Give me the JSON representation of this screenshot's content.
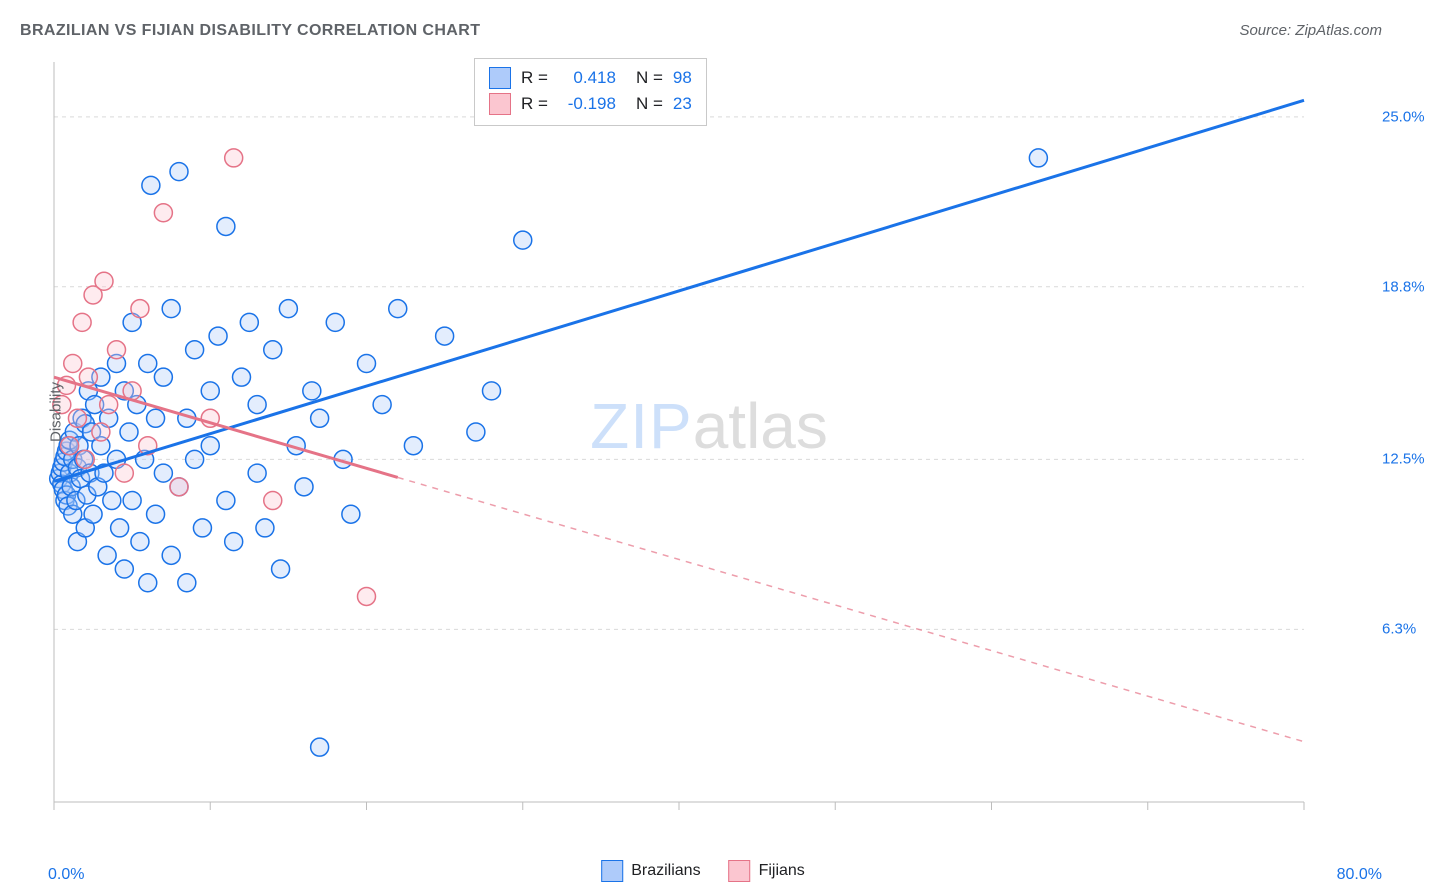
{
  "title": "BRAZILIAN VS FIJIAN DISABILITY CORRELATION CHART",
  "source_label": "Source: ZipAtlas.com",
  "watermark": {
    "left": "ZIP",
    "right": "atlas"
  },
  "ylabel": "Disability",
  "legend": {
    "series": [
      {
        "label": "Brazilians",
        "fill": "#aecbfa",
        "stroke": "#1a73e8"
      },
      {
        "label": "Fijians",
        "fill": "#fbc6d0",
        "stroke": "#e57387"
      }
    ]
  },
  "stats": [
    {
      "fill": "#aecbfa",
      "stroke": "#1a73e8",
      "r_label": "R =",
      "r": "0.418",
      "n_label": "N =",
      "n": "98"
    },
    {
      "fill": "#fbc6d0",
      "stroke": "#e57387",
      "r_label": "R =",
      "r": "-0.198",
      "n_label": "N =",
      "n": "23"
    }
  ],
  "chart": {
    "type": "scatter",
    "background_color": "#ffffff",
    "grid_color": "#d9d9d9",
    "axis_color": "#bdbdbd",
    "xlim": [
      0,
      80
    ],
    "ylim": [
      0,
      27
    ],
    "x_ticks": [
      0,
      10,
      20,
      30,
      40,
      50,
      60,
      70,
      80
    ],
    "y_gridlines": [
      6.3,
      12.5,
      18.8,
      25.0
    ],
    "y_tick_labels": [
      "6.3%",
      "12.5%",
      "18.8%",
      "25.0%"
    ],
    "xlim_labels": [
      "0.0%",
      "80.0%"
    ],
    "marker_radius": 9,
    "marker_stroke_width": 1.5,
    "marker_fill_opacity": 0.35,
    "line_width": 3,
    "series": [
      {
        "name": "Brazilians",
        "color_fill": "#aecbfa",
        "color_stroke": "#1a73e8",
        "trend": {
          "x1": 0,
          "y1": 11.7,
          "x2": 80,
          "y2": 25.6,
          "solid_until_x": 80
        },
        "points": [
          [
            0.3,
            11.8
          ],
          [
            0.4,
            12.0
          ],
          [
            0.5,
            11.6
          ],
          [
            0.5,
            12.2
          ],
          [
            0.6,
            12.4
          ],
          [
            0.6,
            11.4
          ],
          [
            0.7,
            11.0
          ],
          [
            0.7,
            12.6
          ],
          [
            0.8,
            12.8
          ],
          [
            0.8,
            11.2
          ],
          [
            0.9,
            13.0
          ],
          [
            0.9,
            10.8
          ],
          [
            1.0,
            12.0
          ],
          [
            1.0,
            13.2
          ],
          [
            1.1,
            11.5
          ],
          [
            1.2,
            12.5
          ],
          [
            1.2,
            10.5
          ],
          [
            1.3,
            13.5
          ],
          [
            1.4,
            11.0
          ],
          [
            1.5,
            12.2
          ],
          [
            1.5,
            9.5
          ],
          [
            1.6,
            13.0
          ],
          [
            1.7,
            11.8
          ],
          [
            1.8,
            14.0
          ],
          [
            1.9,
            12.5
          ],
          [
            2.0,
            10.0
          ],
          [
            2.0,
            13.8
          ],
          [
            2.1,
            11.2
          ],
          [
            2.2,
            15.0
          ],
          [
            2.3,
            12.0
          ],
          [
            2.4,
            13.5
          ],
          [
            2.5,
            10.5
          ],
          [
            2.6,
            14.5
          ],
          [
            2.8,
            11.5
          ],
          [
            3.0,
            13.0
          ],
          [
            3.0,
            15.5
          ],
          [
            3.2,
            12.0
          ],
          [
            3.4,
            9.0
          ],
          [
            3.5,
            14.0
          ],
          [
            3.7,
            11.0
          ],
          [
            4.0,
            16.0
          ],
          [
            4.0,
            12.5
          ],
          [
            4.2,
            10.0
          ],
          [
            4.5,
            15.0
          ],
          [
            4.5,
            8.5
          ],
          [
            4.8,
            13.5
          ],
          [
            5.0,
            17.5
          ],
          [
            5.0,
            11.0
          ],
          [
            5.3,
            14.5
          ],
          [
            5.5,
            9.5
          ],
          [
            5.8,
            12.5
          ],
          [
            6.0,
            16.0
          ],
          [
            6.0,
            8.0
          ],
          [
            6.2,
            22.5
          ],
          [
            6.5,
            14.0
          ],
          [
            6.5,
            10.5
          ],
          [
            7.0,
            15.5
          ],
          [
            7.0,
            12.0
          ],
          [
            7.5,
            18.0
          ],
          [
            7.5,
            9.0
          ],
          [
            8.0,
            23.0
          ],
          [
            8.0,
            11.5
          ],
          [
            8.5,
            14.0
          ],
          [
            8.5,
            8.0
          ],
          [
            9.0,
            16.5
          ],
          [
            9.0,
            12.5
          ],
          [
            9.5,
            10.0
          ],
          [
            10.0,
            15.0
          ],
          [
            10.0,
            13.0
          ],
          [
            10.5,
            17.0
          ],
          [
            11.0,
            11.0
          ],
          [
            11.0,
            21.0
          ],
          [
            11.5,
            9.5
          ],
          [
            12.0,
            15.5
          ],
          [
            12.5,
            17.5
          ],
          [
            13.0,
            12.0
          ],
          [
            13.0,
            14.5
          ],
          [
            13.5,
            10.0
          ],
          [
            14.0,
            16.5
          ],
          [
            14.5,
            8.5
          ],
          [
            15.0,
            18.0
          ],
          [
            15.5,
            13.0
          ],
          [
            16.0,
            11.5
          ],
          [
            16.5,
            15.0
          ],
          [
            17.0,
            14.0
          ],
          [
            17.0,
            2.0
          ],
          [
            18.0,
            17.5
          ],
          [
            18.5,
            12.5
          ],
          [
            19.0,
            10.5
          ],
          [
            20.0,
            16.0
          ],
          [
            21.0,
            14.5
          ],
          [
            22.0,
            18.0
          ],
          [
            23.0,
            13.0
          ],
          [
            25.0,
            17.0
          ],
          [
            27.0,
            13.5
          ],
          [
            28.0,
            15.0
          ],
          [
            30.0,
            20.5
          ],
          [
            63.0,
            23.5
          ]
        ]
      },
      {
        "name": "Fijians",
        "color_fill": "#fbc6d0",
        "color_stroke": "#e57387",
        "trend": {
          "x1": 0,
          "y1": 15.5,
          "x2": 80,
          "y2": 2.2,
          "solid_until_x": 22
        },
        "points": [
          [
            0.5,
            14.5
          ],
          [
            0.8,
            15.2
          ],
          [
            1.0,
            13.0
          ],
          [
            1.2,
            16.0
          ],
          [
            1.5,
            14.0
          ],
          [
            1.8,
            17.5
          ],
          [
            2.0,
            12.5
          ],
          [
            2.2,
            15.5
          ],
          [
            2.5,
            18.5
          ],
          [
            3.0,
            13.5
          ],
          [
            3.2,
            19.0
          ],
          [
            3.5,
            14.5
          ],
          [
            4.0,
            16.5
          ],
          [
            4.5,
            12.0
          ],
          [
            5.0,
            15.0
          ],
          [
            5.5,
            18.0
          ],
          [
            6.0,
            13.0
          ],
          [
            7.0,
            21.5
          ],
          [
            8.0,
            11.5
          ],
          [
            10.0,
            14.0
          ],
          [
            11.5,
            23.5
          ],
          [
            14.0,
            11.0
          ],
          [
            20.0,
            7.5
          ]
        ]
      }
    ]
  }
}
